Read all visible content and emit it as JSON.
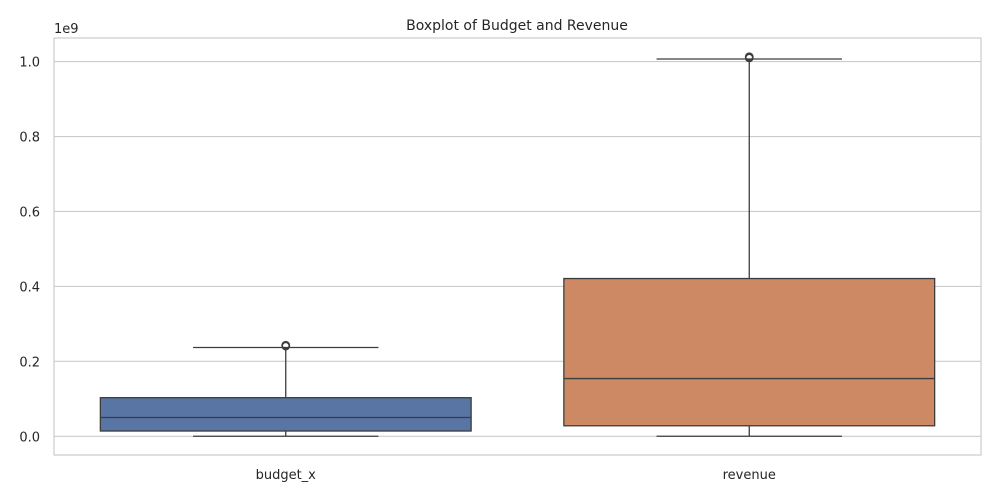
{
  "chart_data": {
    "type": "box",
    "title": "Boxplot of Budget and Revenue",
    "xlabel": "",
    "ylabel": "",
    "y_scale_label": "1e9",
    "ylim": [
      -0.05,
      1.063
    ],
    "yticks": [
      0.0,
      0.2,
      0.4,
      0.6,
      0.8,
      1.0
    ],
    "ytick_labels": [
      "0.0",
      "0.2",
      "0.4",
      "0.6",
      "0.8",
      "1.0"
    ],
    "grid": "y",
    "categories": [
      "budget_x",
      "revenue"
    ],
    "boxes": [
      {
        "name": "budget_x",
        "color": "#5875a4",
        "whisker_low": 0.0,
        "q1": 0.014,
        "median": 0.05,
        "q3": 0.103,
        "whisker_high": 0.237,
        "outliers": [
          0.241,
          0.243
        ]
      },
      {
        "name": "revenue",
        "color": "#cc8963",
        "whisker_low": 0.0,
        "q1": 0.028,
        "median": 0.154,
        "q3": 0.421,
        "whisker_high": 1.007,
        "outliers": [
          1.01,
          1.013
        ]
      }
    ]
  }
}
